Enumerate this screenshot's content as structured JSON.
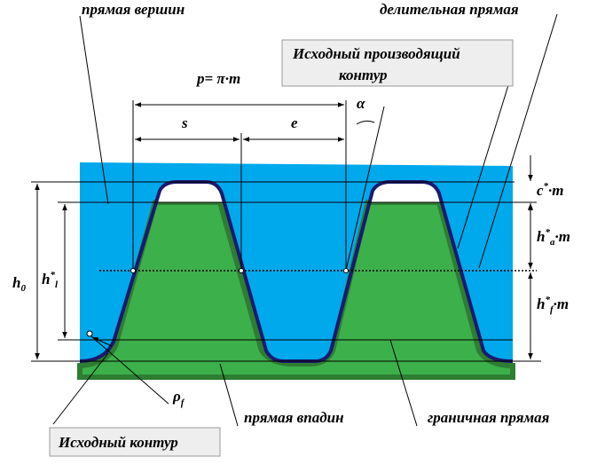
{
  "labels": {
    "tip_line": "прямая вершин",
    "pitch_line": "делительная прямая",
    "generating_contour": [
      "Исходный производящий",
      "контур"
    ],
    "pitch": "p= π·m",
    "s": "s",
    "e": "e",
    "alpha": "α",
    "c": {
      "base": "c",
      "sup": "*",
      "rest": "·m"
    },
    "ha": {
      "base": "h",
      "sup": "*",
      "sub": "a",
      "rest": "·m"
    },
    "hf": {
      "base": "h",
      "sup": "*",
      "sub": "f",
      "rest": "·m"
    },
    "h0": {
      "base": "h",
      "sub": "0"
    },
    "hl": {
      "base": "h",
      "sup": "*",
      "sub": "l"
    },
    "rho": {
      "base": "ρ",
      "sub": "f"
    },
    "root_line": "прямая впадин",
    "boundary_line": "граничная прямая",
    "basic_contour": "Исходный контур"
  }
}
